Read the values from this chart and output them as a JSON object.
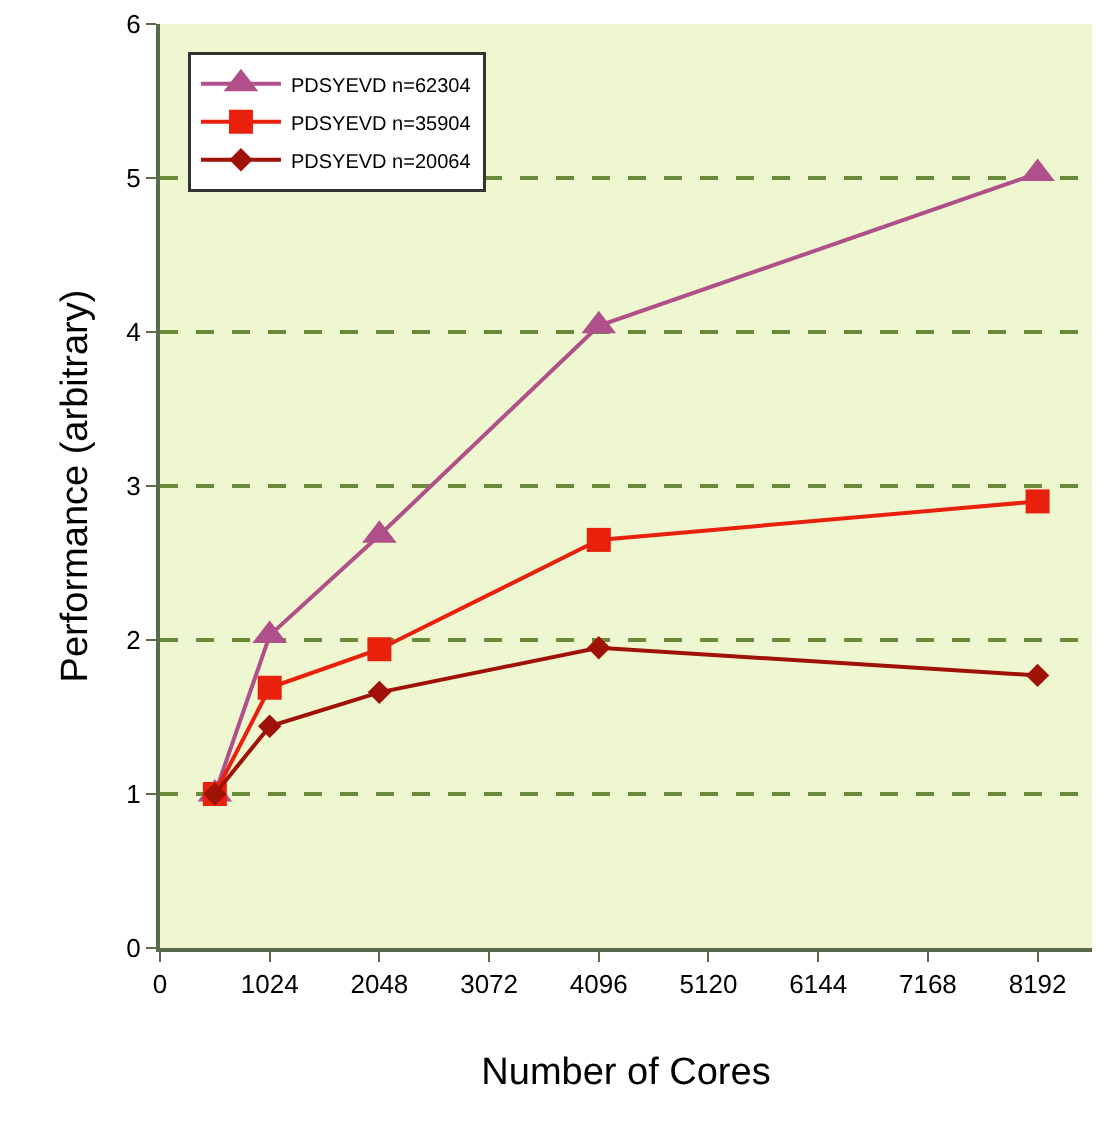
{
  "chart_data": {
    "type": "line",
    "xlabel": "Number of Cores",
    "ylabel": "Performance (arbitrary)",
    "x": [
      512,
      1024,
      2048,
      4096,
      8192
    ],
    "series": [
      {
        "name": "PDSYEVD n=62304",
        "color": "#b0508a",
        "marker": "triangle",
        "values": [
          1,
          2.03,
          2.68,
          4.04,
          5.03
        ]
      },
      {
        "name": "PDSYEVD n=35904",
        "color": "#e8200c",
        "marker": "square",
        "values": [
          1,
          1.69,
          1.94,
          2.65,
          2.9
        ]
      },
      {
        "name": "PDSYEVD n=20064",
        "color": "#a01208",
        "marker": "diamond",
        "values": [
          1,
          1.44,
          1.66,
          1.95,
          1.77
        ]
      }
    ],
    "xlim": [
      0,
      8700
    ],
    "xticks": [
      0,
      1024,
      2048,
      3072,
      4096,
      5120,
      6144,
      7168,
      8192
    ],
    "ylim": [
      0,
      6
    ],
    "yticks": [
      0,
      1,
      2,
      3,
      4,
      5,
      6
    ],
    "grid": "y",
    "legend": "top left"
  }
}
